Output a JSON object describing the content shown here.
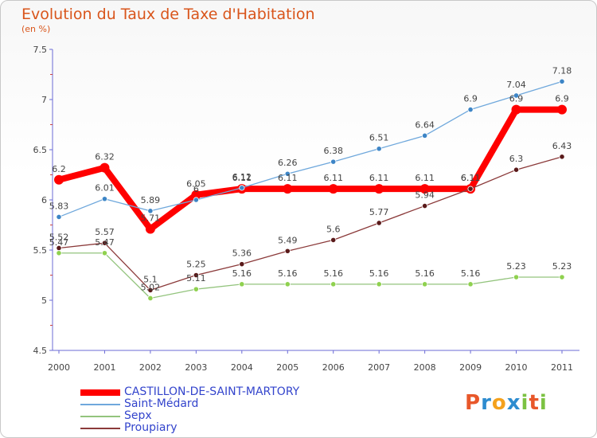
{
  "title": "Evolution du Taux de Taxe d'Habitation",
  "subtitle": "(en %)",
  "logo": {
    "text": "Proxiti",
    "colors": [
      "#e8572a",
      "#2d8ccf",
      "#f4a11d",
      "#2d8ccf",
      "#7cc242",
      "#e8572a",
      "#7cc242"
    ]
  },
  "chart_data": {
    "type": "line",
    "categories": [
      "2000",
      "2001",
      "2002",
      "2003",
      "2004",
      "2005",
      "2006",
      "2007",
      "2008",
      "2009",
      "2010",
      "2011"
    ],
    "ylim": [
      4.5,
      7.5
    ],
    "yticks": [
      "4.5",
      "5",
      "5.5",
      "6",
      "6.5",
      "7",
      "7.5"
    ],
    "grid": false,
    "legend_position": "bottom-left",
    "series": [
      {
        "name": "CASTILLON-DE-SAINT-MARTORY",
        "color": "#ff0000",
        "width": 8,
        "marker": 6,
        "values": [
          6.2,
          6.32,
          5.71,
          6.05,
          6.11,
          6.11,
          6.11,
          6.11,
          6.11,
          6.11,
          6.9,
          6.9
        ],
        "labels": [
          "6.2",
          "6.32",
          "5.71",
          "6.05",
          "6.11",
          "6.11",
          "6.11",
          "6.11",
          "6.11",
          "6.11",
          "6.9",
          "6.9"
        ]
      },
      {
        "name": "Saint-Médard",
        "color": "#6fa8dc",
        "marker_fill": "#3d85c6",
        "width": 1.3,
        "marker": 3.2,
        "values": [
          5.83,
          6.01,
          5.89,
          6.0,
          6.12,
          6.26,
          6.38,
          6.51,
          6.64,
          6.9,
          7.04,
          7.18
        ],
        "labels": [
          "5.83",
          "6.01",
          "5.89",
          "6",
          "6.12",
          "6.26",
          "6.38",
          "6.51",
          "6.64",
          "6.9",
          "7.04",
          "7.18"
        ]
      },
      {
        "name": "Sepx",
        "color": "#93c47d",
        "marker_fill": "#8fd14f",
        "width": 1.3,
        "marker": 3.2,
        "values": [
          5.47,
          5.47,
          5.02,
          5.11,
          5.16,
          5.16,
          5.16,
          5.16,
          5.16,
          5.16,
          5.23,
          5.23
        ],
        "labels": [
          "5.47",
          "5.47",
          "5.02",
          "5.11",
          "5.16",
          "5.16",
          "5.16",
          "5.16",
          "5.16",
          "5.16",
          "5.23",
          "5.23"
        ]
      },
      {
        "name": "Proupiary",
        "color": "#8b3a3a",
        "marker_fill": "#5a1a1a",
        "width": 1.3,
        "marker": 3.2,
        "values": [
          5.52,
          5.57,
          5.1,
          5.25,
          5.36,
          5.49,
          5.6,
          5.77,
          5.94,
          6.11,
          6.3,
          6.43
        ],
        "labels": [
          "5.52",
          "5.57",
          "5.1",
          "5.25",
          "5.36",
          "5.49",
          "5.6",
          "5.77",
          "5.94",
          "6.11",
          "6.3",
          "6.43"
        ]
      }
    ]
  }
}
